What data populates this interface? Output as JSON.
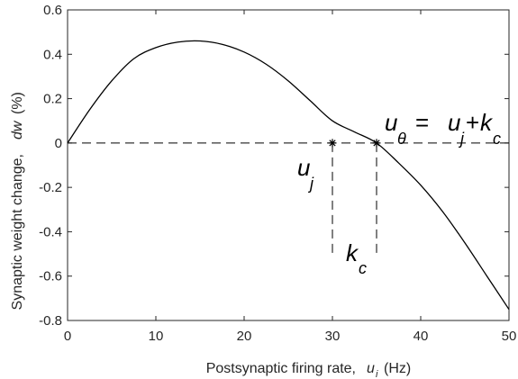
{
  "chart_data": {
    "type": "line",
    "xlabel": {
      "text": "Postsynaptic firing rate,",
      "var": "u",
      "sub": "i",
      "unit": "(Hz)"
    },
    "ylabel": {
      "text": "Synaptic weight change,",
      "var": "dw",
      "unit": "(%)"
    },
    "xlim": [
      0,
      50
    ],
    "ylim": [
      -0.8,
      0.6
    ],
    "xticks": [
      0,
      10,
      20,
      30,
      40,
      50
    ],
    "xtick_labels": [
      "0",
      "10",
      "20",
      "30",
      "40",
      "50"
    ],
    "yticks": [
      -0.8,
      -0.6,
      -0.4,
      -0.2,
      0,
      0.2,
      0.4,
      0.6
    ],
    "ytick_labels": [
      "-0.8",
      "-0.6",
      "-0.4",
      "-0.2",
      "0",
      "0.2",
      "0.4",
      "0.6"
    ],
    "grid": false,
    "series": [
      {
        "color": "#000000",
        "style": "solid",
        "x": [
          0,
          2.5,
          5,
          7.5,
          10,
          12.5,
          15,
          17.5,
          20,
          22.5,
          25,
          27.5,
          30,
          32.5,
          35,
          37.5,
          40,
          42.5,
          45,
          47.5,
          50
        ],
        "y": [
          0.0,
          0.15,
          0.28,
          0.38,
          0.43,
          0.455,
          0.46,
          0.445,
          0.41,
          0.355,
          0.28,
          0.19,
          0.1,
          0.05,
          0.0,
          -0.09,
          -0.19,
          -0.31,
          -0.45,
          -0.6,
          -0.75
        ]
      }
    ],
    "reference_lines": [
      {
        "orientation": "horizontal",
        "y": 0,
        "x_from": 0,
        "x_to": 50,
        "style": "dashed"
      },
      {
        "orientation": "vertical",
        "x": 30,
        "y_from": 0,
        "y_to": -0.5,
        "style": "dashed"
      },
      {
        "orientation": "vertical",
        "x": 35,
        "y_from": 0,
        "y_to": -0.5,
        "style": "dashed"
      }
    ],
    "markers": [
      {
        "x": 30,
        "y": 0,
        "symbol": "*"
      },
      {
        "x": 35,
        "y": 0,
        "symbol": "*"
      }
    ],
    "annotations": {
      "u_j": {
        "var": "u",
        "sub": "j"
      },
      "k_c": {
        "var": "k",
        "sub": "c"
      },
      "threshold": {
        "lhs_var": "u",
        "lhs_sub": "θ",
        "eq": "=",
        "rhs1_var": "u",
        "rhs1_sub": "j",
        "plus": "+",
        "rhs2_var": "k",
        "rhs2_sub": "c"
      }
    }
  }
}
